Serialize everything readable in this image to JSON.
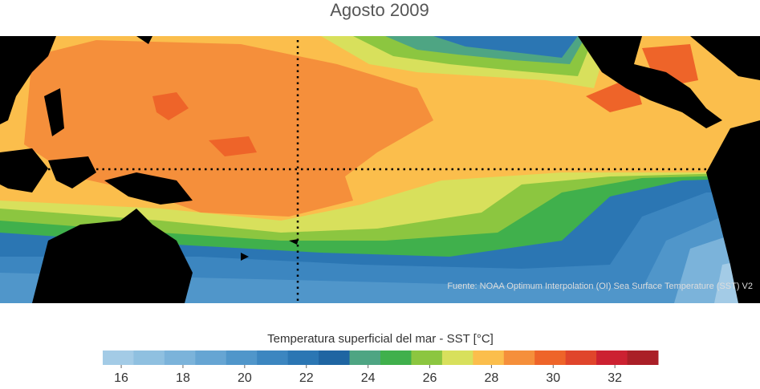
{
  "title": "Agosto 2009",
  "source": "Fuente: NOAA Optimum Interpolation (OI) Sea Surface Temperature (SST) V2",
  "colorbar": {
    "label": "Temperatura superficial del mar - SST  [°C]",
    "lim": [
      15.4,
      33.4
    ],
    "ticks": [
      16,
      18,
      20,
      22,
      24,
      26,
      28,
      30,
      32
    ],
    "colors": [
      "#a3cbe6",
      "#8fc0e0",
      "#7bb3da",
      "#66a5d3",
      "#5096ca",
      "#3c86c0",
      "#2b76b3",
      "#1f65a2",
      "#4ea583",
      "#40b04c",
      "#8cc640",
      "#d8e05c",
      "#fbbe4c",
      "#f58f3b",
      "#ee6429",
      "#e0452b",
      "#cc2131",
      "#aa1f27"
    ]
  }
}
